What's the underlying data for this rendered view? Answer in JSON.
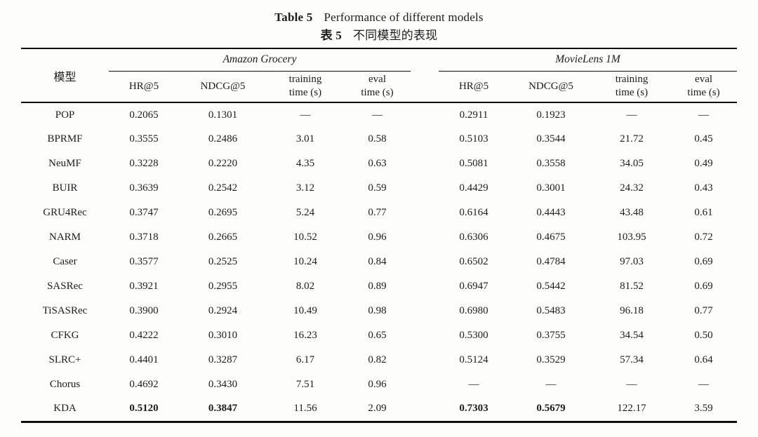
{
  "page": {
    "background": "#fdfdfb",
    "text_color": "#1c1c1c",
    "rule_color": "#0d0d0d"
  },
  "title": {
    "en_label": "Table 5",
    "en_text": "Performance of different models",
    "zh_label": "表 5",
    "zh_text": "不同模型的表现"
  },
  "table": {
    "model_column_header": "模型",
    "groups": [
      {
        "label": "Amazon Grocery"
      },
      {
        "label": "MovieLens 1M"
      }
    ],
    "sub_headers": [
      "HR@5",
      "NDCG@5",
      "training time (s)",
      "eval time (s)"
    ],
    "missing_value_symbol": "—",
    "rows": [
      {
        "model": "POP",
        "values": [
          "0.2065",
          "0.1301",
          "—",
          "—",
          "0.2911",
          "0.1923",
          "—",
          "—"
        ],
        "bold_indices": []
      },
      {
        "model": "BPRMF",
        "values": [
          "0.3555",
          "0.2486",
          "3.01",
          "0.58",
          "0.5103",
          "0.3544",
          "21.72",
          "0.45"
        ],
        "bold_indices": []
      },
      {
        "model": "NeuMF",
        "values": [
          "0.3228",
          "0.2220",
          "4.35",
          "0.63",
          "0.5081",
          "0.3558",
          "34.05",
          "0.49"
        ],
        "bold_indices": []
      },
      {
        "model": "BUIR",
        "values": [
          "0.3639",
          "0.2542",
          "3.12",
          "0.59",
          "0.4429",
          "0.3001",
          "24.32",
          "0.43"
        ],
        "bold_indices": []
      },
      {
        "model": "GRU4Rec",
        "values": [
          "0.3747",
          "0.2695",
          "5.24",
          "0.77",
          "0.6164",
          "0.4443",
          "43.48",
          "0.61"
        ],
        "bold_indices": []
      },
      {
        "model": "NARM",
        "values": [
          "0.3718",
          "0.2665",
          "10.52",
          "0.96",
          "0.6306",
          "0.4675",
          "103.95",
          "0.72"
        ],
        "bold_indices": []
      },
      {
        "model": "Caser",
        "values": [
          "0.3577",
          "0.2525",
          "10.24",
          "0.84",
          "0.6502",
          "0.4784",
          "97.03",
          "0.69"
        ],
        "bold_indices": []
      },
      {
        "model": "SASRec",
        "values": [
          "0.3921",
          "0.2955",
          "8.02",
          "0.89",
          "0.6947",
          "0.5442",
          "81.52",
          "0.69"
        ],
        "bold_indices": []
      },
      {
        "model": "TiSASRec",
        "values": [
          "0.3900",
          "0.2924",
          "10.49",
          "0.98",
          "0.6980",
          "0.5483",
          "96.18",
          "0.77"
        ],
        "bold_indices": []
      },
      {
        "model": "CFKG",
        "values": [
          "0.4222",
          "0.3010",
          "16.23",
          "0.65",
          "0.5300",
          "0.3755",
          "34.54",
          "0.50"
        ],
        "bold_indices": []
      },
      {
        "model": "SLRC+",
        "values": [
          "0.4401",
          "0.3287",
          "6.17",
          "0.82",
          "0.5124",
          "0.3529",
          "57.34",
          "0.64"
        ],
        "bold_indices": []
      },
      {
        "model": "Chorus",
        "values": [
          "0.4692",
          "0.3430",
          "7.51",
          "0.96",
          "—",
          "—",
          "—",
          "—"
        ],
        "bold_indices": []
      },
      {
        "model": "KDA",
        "values": [
          "0.5120",
          "0.3847",
          "11.56",
          "2.09",
          "0.7303",
          "0.5679",
          "122.17",
          "3.59"
        ],
        "bold_indices": [
          0,
          1,
          4,
          5
        ]
      }
    ]
  }
}
